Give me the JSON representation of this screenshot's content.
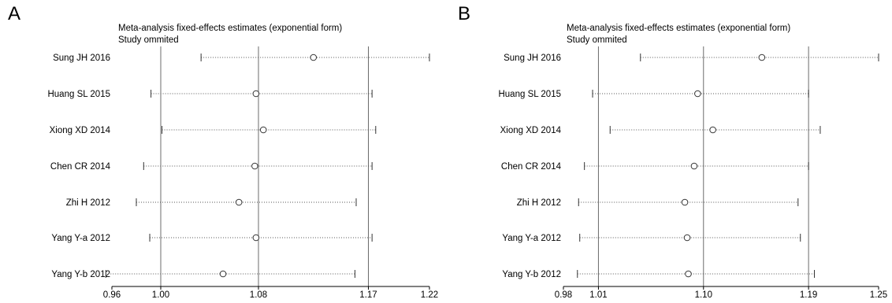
{
  "chart_data": [
    {
      "type": "scatter",
      "panel_label": "A",
      "title": "Meta-analysis fixed-effects estimates (exponential form)",
      "subtitle": "Study ommited",
      "studies": [
        "Sung  JH 2016",
        "Huang SL 2015",
        "Xiong XD 2014",
        "Chen CR 2014",
        "Zhi H 2012",
        "Yang Y-a 2012",
        "Yang Y-b 2012"
      ],
      "estimate": [
        1.125,
        1.078,
        1.084,
        1.077,
        1.064,
        1.078,
        1.051
      ],
      "ci_lower": [
        1.033,
        0.992,
        1.001,
        0.986,
        0.98,
        0.991,
        0.955
      ],
      "ci_upper": [
        1.22,
        1.173,
        1.176,
        1.173,
        1.16,
        1.173,
        1.159
      ],
      "xlim": [
        0.96,
        1.22
      ],
      "x_ticks": [
        "0.96",
        "1.00",
        "1.08",
        "1.17",
        "1.22"
      ],
      "reference_lines": [
        1.0,
        1.08,
        1.17
      ],
      "grid": false
    },
    {
      "type": "scatter",
      "panel_label": "B",
      "title": "Meta-analysis fixed-effects estimates (exponential form)",
      "subtitle": "Study ommited",
      "studies": [
        "Sung  JH 2016",
        "Huang SL 2015",
        "Xiong XD 2014",
        "Chen CR 2014",
        "Zhi H 2012",
        "Yang Y-a 2012",
        "Yang Y-b 2012"
      ],
      "estimate": [
        1.15,
        1.095,
        1.108,
        1.092,
        1.084,
        1.086,
        1.087
      ],
      "ci_lower": [
        1.046,
        1.005,
        1.02,
        0.998,
        0.993,
        0.994,
        0.992
      ],
      "ci_upper": [
        1.25,
        1.19,
        1.2,
        1.19,
        1.181,
        1.183,
        1.195
      ],
      "xlim": [
        0.98,
        1.25
      ],
      "x_ticks": [
        "0.98",
        "1.01",
        "1.10",
        "1.19",
        "1.25"
      ],
      "reference_lines": [
        1.01,
        1.1,
        1.19
      ],
      "grid": false
    }
  ]
}
